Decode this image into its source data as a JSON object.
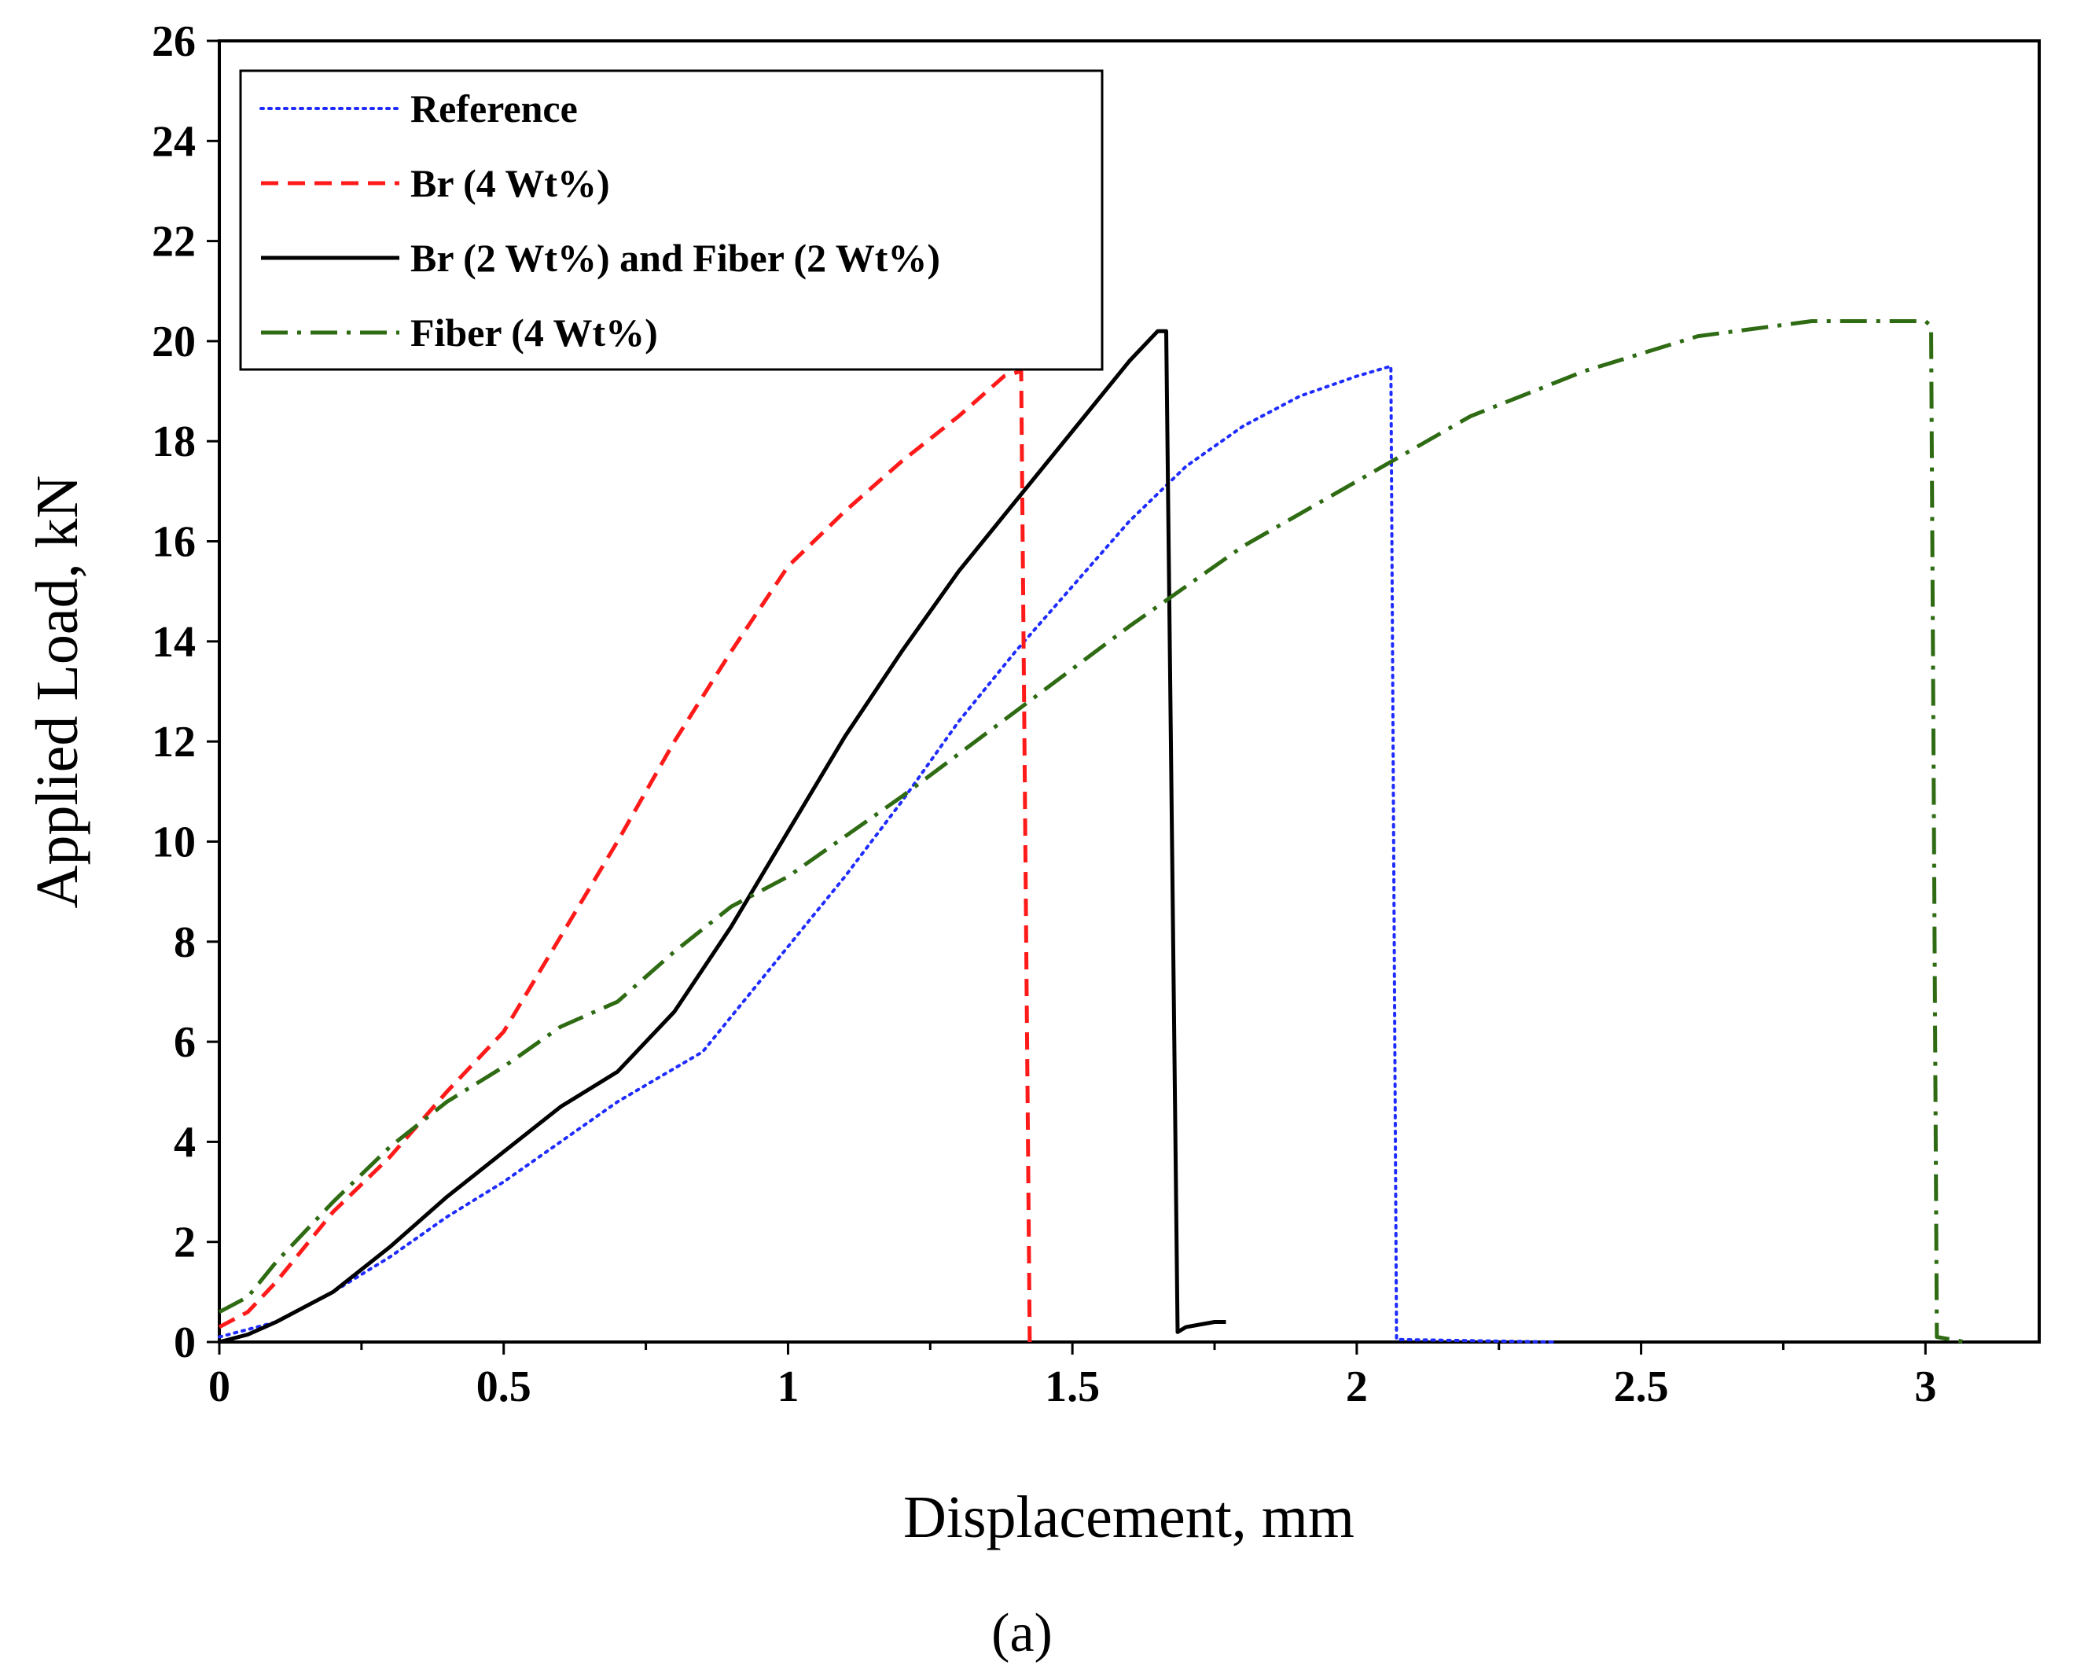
{
  "chart_data": {
    "type": "line",
    "title": "",
    "caption": "(a)",
    "xlabel": "Displacement, mm",
    "ylabel": "Applied Load, kN",
    "xlim": [
      0,
      3.2
    ],
    "ylim": [
      0,
      26
    ],
    "x_ticks": [
      0,
      0.5,
      1,
      1.5,
      2,
      2.5,
      3
    ],
    "x_tick_labels": [
      "0",
      "0.5",
      "1",
      "1.5",
      "2",
      "2.5",
      "3"
    ],
    "y_ticks": [
      0,
      2,
      4,
      6,
      8,
      10,
      12,
      14,
      16,
      18,
      20,
      22,
      24,
      26
    ],
    "y_tick_labels": [
      "0",
      "2",
      "4",
      "6",
      "8",
      "10",
      "12",
      "14",
      "16",
      "18",
      "20",
      "22",
      "24",
      "26"
    ],
    "grid": false,
    "legend_position": "top-left",
    "series": [
      {
        "name": "Reference",
        "color": "#1f2cff",
        "style": "dotted",
        "points": [
          [
            0,
            0.1
          ],
          [
            0.1,
            0.4
          ],
          [
            0.2,
            1.0
          ],
          [
            0.3,
            1.7
          ],
          [
            0.4,
            2.5
          ],
          [
            0.5,
            3.2
          ],
          [
            0.6,
            4.0
          ],
          [
            0.7,
            4.8
          ],
          [
            0.85,
            5.8
          ],
          [
            1.0,
            7.9
          ],
          [
            1.1,
            9.3
          ],
          [
            1.2,
            10.8
          ],
          [
            1.3,
            12.4
          ],
          [
            1.4,
            13.8
          ],
          [
            1.5,
            15.1
          ],
          [
            1.6,
            16.4
          ],
          [
            1.7,
            17.5
          ],
          [
            1.8,
            18.3
          ],
          [
            1.9,
            18.9
          ],
          [
            2.0,
            19.3
          ],
          [
            2.06,
            19.5
          ],
          [
            2.07,
            0.05
          ],
          [
            2.35,
            0.0
          ]
        ]
      },
      {
        "name": "Br (4 Wt%)",
        "color": "#ff1a1a",
        "style": "dashed",
        "points": [
          [
            0,
            0.3
          ],
          [
            0.05,
            0.6
          ],
          [
            0.1,
            1.2
          ],
          [
            0.2,
            2.6
          ],
          [
            0.3,
            3.7
          ],
          [
            0.4,
            5.0
          ],
          [
            0.5,
            6.2
          ],
          [
            0.6,
            8.1
          ],
          [
            0.7,
            10.0
          ],
          [
            0.8,
            12.0
          ],
          [
            0.9,
            13.8
          ],
          [
            1.0,
            15.5
          ],
          [
            1.1,
            16.6
          ],
          [
            1.2,
            17.6
          ],
          [
            1.3,
            18.5
          ],
          [
            1.38,
            19.3
          ],
          [
            1.41,
            19.4
          ],
          [
            1.425,
            0.0
          ]
        ]
      },
      {
        "name": "Br (2 Wt%) and Fiber (2 Wt%)",
        "color": "#000000",
        "style": "solid",
        "points": [
          [
            0,
            0.0
          ],
          [
            0.05,
            0.15
          ],
          [
            0.1,
            0.4
          ],
          [
            0.2,
            1.0
          ],
          [
            0.3,
            1.9
          ],
          [
            0.4,
            2.9
          ],
          [
            0.5,
            3.8
          ],
          [
            0.6,
            4.7
          ],
          [
            0.7,
            5.4
          ],
          [
            0.8,
            6.6
          ],
          [
            0.9,
            8.3
          ],
          [
            1.0,
            10.2
          ],
          [
            1.1,
            12.1
          ],
          [
            1.2,
            13.8
          ],
          [
            1.3,
            15.4
          ],
          [
            1.4,
            16.8
          ],
          [
            1.5,
            18.2
          ],
          [
            1.6,
            19.6
          ],
          [
            1.65,
            20.2
          ],
          [
            1.665,
            20.2
          ],
          [
            1.685,
            0.2
          ],
          [
            1.7,
            0.3
          ],
          [
            1.75,
            0.4
          ],
          [
            1.77,
            0.4
          ]
        ]
      },
      {
        "name": "Fiber (4 Wt%)",
        "color": "#2e6b13",
        "style": "dashdot",
        "points": [
          [
            0,
            0.6
          ],
          [
            0.05,
            0.9
          ],
          [
            0.1,
            1.6
          ],
          [
            0.2,
            2.8
          ],
          [
            0.3,
            3.9
          ],
          [
            0.4,
            4.8
          ],
          [
            0.5,
            5.5
          ],
          [
            0.6,
            6.3
          ],
          [
            0.7,
            6.8
          ],
          [
            0.8,
            7.8
          ],
          [
            0.9,
            8.7
          ],
          [
            1.0,
            9.3
          ],
          [
            1.2,
            10.9
          ],
          [
            1.4,
            12.6
          ],
          [
            1.6,
            14.3
          ],
          [
            1.8,
            15.9
          ],
          [
            2.0,
            17.2
          ],
          [
            2.2,
            18.5
          ],
          [
            2.4,
            19.4
          ],
          [
            2.6,
            20.1
          ],
          [
            2.8,
            20.4
          ],
          [
            3.0,
            20.4
          ],
          [
            3.01,
            20.3
          ],
          [
            3.02,
            0.1
          ],
          [
            3.07,
            0.0
          ]
        ]
      }
    ]
  }
}
